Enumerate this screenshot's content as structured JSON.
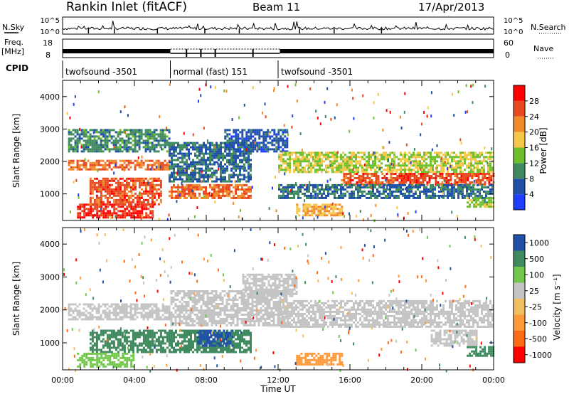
{
  "header": {
    "title": "Rankin Inlet (fitACF)",
    "beam": "Beam 11",
    "date": "17/Apr/2013"
  },
  "left_labels": {
    "nsky": "N.Sky",
    "freq": "Freq.",
    "freq_unit": "[MHz]",
    "cpid": "CPID"
  },
  "right_labels": {
    "nsearch": "N.Search",
    "nave": "Nave"
  },
  "aux_ticks": {
    "noise_left": [
      "10^5",
      "10^0"
    ],
    "noise_right": [
      "10^5",
      "10^0"
    ],
    "freq_left": [
      "18",
      "8"
    ],
    "nave_right": [
      "60",
      "0"
    ]
  },
  "cpid_segments": [
    {
      "label": "twofsound -3501",
      "start_h": 0,
      "end_h": 6
    },
    {
      "label": "normal (fast) 151",
      "start_h": 6,
      "end_h": 12
    },
    {
      "label": "twofsound -3501",
      "start_h": 12,
      "end_h": 24
    }
  ],
  "colors": {
    "power": [
      "#1f3cff",
      "#1f4fa6",
      "#3f8a5f",
      "#6ebf2b",
      "#f5c84a",
      "#f08a2a",
      "#e84a20",
      "#ff0000"
    ],
    "velocity": [
      "#ff0000",
      "#ff6a14",
      "#ff9a3a",
      "#f0c060",
      "#c4c4c4",
      "#72c84a",
      "#3f8a5f",
      "#1f4fa6"
    ]
  },
  "chart_data": [
    {
      "type": "heatmap",
      "panel": "power",
      "xlabel": "",
      "ylabel": "Slant Range [km]",
      "xlim": [
        0,
        24
      ],
      "ylim": [
        180,
        4500
      ],
      "yticks": [
        "1000",
        "2000",
        "3000",
        "4000"
      ],
      "colorbar": {
        "label": "Power [dB]",
        "ticks": [
          "4",
          "8",
          "12",
          "16",
          "20",
          "24",
          "28"
        ],
        "range": [
          0,
          32
        ]
      },
      "regions": [
        {
          "t0": 0.3,
          "t1": 5.9,
          "r0": 1750,
          "r1": 2050,
          "level": 24
        },
        {
          "t0": 0.3,
          "t1": 5.9,
          "r0": 2300,
          "r1": 3000,
          "level": 10
        },
        {
          "t0": 0.8,
          "t1": 5.0,
          "r0": 250,
          "r1": 700,
          "level": 28
        },
        {
          "t0": 1.5,
          "t1": 5.5,
          "r0": 700,
          "r1": 1500,
          "level": 26
        },
        {
          "t0": 5.9,
          "t1": 10.5,
          "r0": 850,
          "r1": 1300,
          "level": 24
        },
        {
          "t0": 5.9,
          "t1": 10.5,
          "r0": 1400,
          "r1": 2600,
          "level": 8
        },
        {
          "t0": 9.0,
          "t1": 12.5,
          "r0": 2300,
          "r1": 3000,
          "level": 6
        },
        {
          "t0": 12.0,
          "t1": 24.0,
          "r0": 1700,
          "r1": 2300,
          "level": 16
        },
        {
          "t0": 15.5,
          "t1": 24.0,
          "r0": 1300,
          "r1": 1650,
          "level": 26
        },
        {
          "t0": 12.0,
          "t1": 24.0,
          "r0": 900,
          "r1": 1300,
          "level": 8
        },
        {
          "t0": 13.0,
          "t1": 15.5,
          "r0": 350,
          "r1": 700,
          "level": 20
        },
        {
          "t0": 22.5,
          "t1": 24.0,
          "r0": 600,
          "r1": 900,
          "level": 14
        }
      ]
    },
    {
      "type": "heatmap",
      "panel": "velocity",
      "xlabel": "Time UT",
      "ylabel": "Slant Range [km]",
      "xlim": [
        0,
        24
      ],
      "ylim": [
        180,
        4500
      ],
      "yticks": [
        "1000",
        "2000",
        "3000",
        "4000"
      ],
      "xticks": [
        "00:00",
        "04:00",
        "08:00",
        "12:00",
        "16:00",
        "20:00",
        "00:00"
      ],
      "colorbar": {
        "label": "Velocity [m s⁻¹]",
        "ticks": [
          "1000",
          "500",
          "100",
          "25",
          "-25",
          "-100",
          "-500",
          "-1000"
        ]
      },
      "regions": [
        {
          "t0": 0.3,
          "t1": 6.0,
          "r0": 1700,
          "r1": 2200,
          "level": -10
        },
        {
          "t0": 1.5,
          "t1": 5.9,
          "r0": 700,
          "r1": 1400,
          "level": 250
        },
        {
          "t0": 0.8,
          "t1": 4.0,
          "r0": 300,
          "r1": 700,
          "level": 50
        },
        {
          "t0": 5.9,
          "t1": 10.5,
          "r0": 700,
          "r1": 1400,
          "level": 300
        },
        {
          "t0": 7.5,
          "t1": 9.5,
          "r0": 900,
          "r1": 1400,
          "level": 800
        },
        {
          "t0": 6.0,
          "t1": 12.5,
          "r0": 1500,
          "r1": 2600,
          "level": 0
        },
        {
          "t0": 10.0,
          "t1": 13.0,
          "r0": 2400,
          "r1": 3100,
          "level": 0
        },
        {
          "t0": 12.0,
          "t1": 24.0,
          "r0": 1500,
          "r1": 2300,
          "level": -5
        },
        {
          "t0": 13.0,
          "t1": 15.5,
          "r0": 350,
          "r1": 700,
          "level": -300
        },
        {
          "t0": 20.5,
          "t1": 23.0,
          "r0": 900,
          "r1": 1400,
          "level": 0
        },
        {
          "t0": 22.5,
          "t1": 24.0,
          "r0": 600,
          "r1": 900,
          "level": 150
        }
      ]
    }
  ]
}
